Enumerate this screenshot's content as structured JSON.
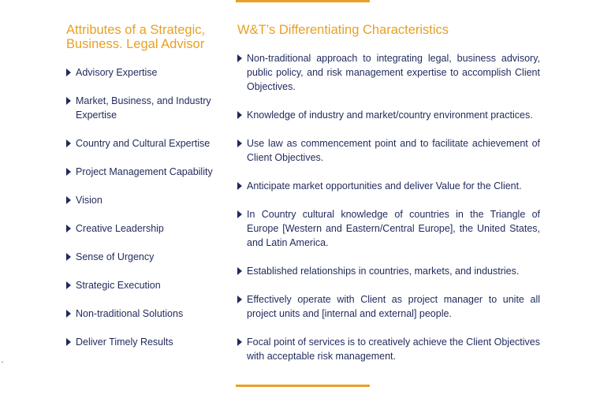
{
  "left": {
    "heading": "Attributes of a Strategic, Business. Legal Advisor",
    "items": [
      "Advisory Expertise",
      "Market, Business, and Industry Expertise",
      "Country and Cultural Expertise",
      "Project Management Capability",
      "Vision",
      "Creative Leadership",
      "Sense of Urgency",
      "Strategic Execution",
      "Non-traditional Solutions",
      "Deliver Timely Results"
    ]
  },
  "right": {
    "heading": "W&T’s Differentiating Characteristics",
    "items": [
      "Non-traditional approach to integrating legal, business advisory, public policy, and risk management expertise to accomplish Client Objectives.",
      "Knowledge of industry and market/country environment practices.",
      "Use law as commencement point and to facilitate achievement of Client Objectives.",
      "Anticipate market opportunities and deliver Value for the Client.",
      "In Country cultural knowledge of countries in the Triangle of Europe [Western and Eastern/Central Europe], the United States, and Latin America.",
      "Established relationships in countries, markets, and industries.",
      "Effectively operate with Client as project manager to unite all project units and [internal and external] people.",
      "Focal point of services is to creatively achieve the Client Objectives with acceptable risk management."
    ]
  },
  "colors": {
    "accent": "#e8a024",
    "text": "#1f2a5c"
  },
  "icons": {
    "bullet": "triangle-right-icon"
  }
}
